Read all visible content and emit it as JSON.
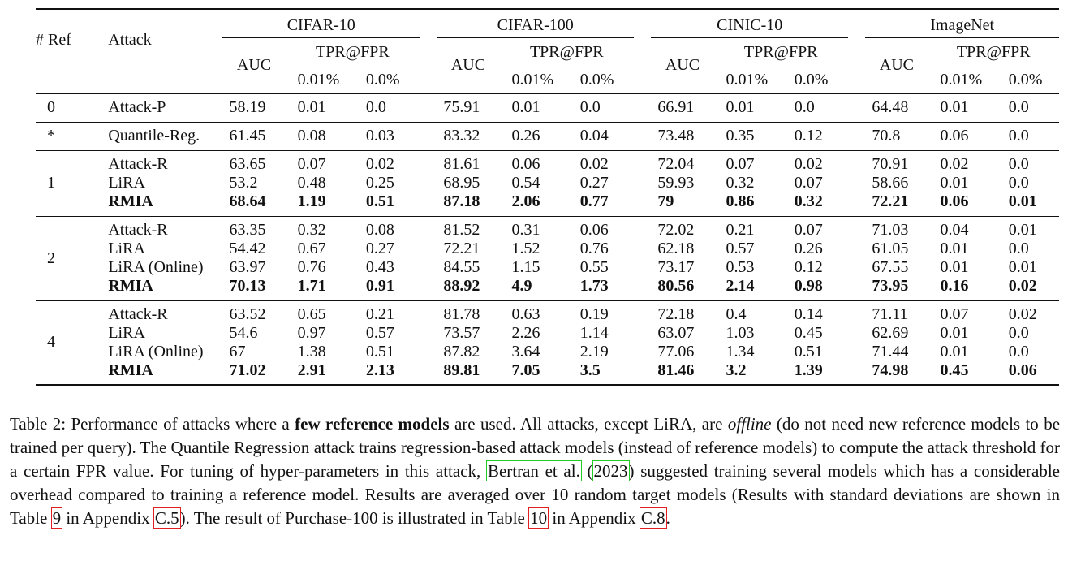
{
  "header": {
    "ref_label": "# Ref",
    "attack_label": "Attack",
    "datasets": [
      "CIFAR-10",
      "CIFAR-100",
      "CINIC-10",
      "ImageNet"
    ],
    "auc_label": "AUC",
    "tpr_label": "TPR@FPR",
    "fpr_values": [
      "0.01%",
      "0.0%"
    ]
  },
  "groups": [
    {
      "ref": "0",
      "rows": [
        {
          "attack": "Attack-P",
          "bold": false,
          "values": [
            "58.19",
            "0.01",
            "0.0",
            "75.91",
            "0.01",
            "0.0",
            "66.91",
            "0.01",
            "0.0",
            "64.48",
            "0.01",
            "0.0"
          ]
        }
      ]
    },
    {
      "ref": "*",
      "rows": [
        {
          "attack": "Quantile-Reg.",
          "bold": false,
          "values": [
            "61.45",
            "0.08",
            "0.03",
            "83.32",
            "0.26",
            "0.04",
            "73.48",
            "0.35",
            "0.12",
            "70.8",
            "0.06",
            "0.0"
          ]
        }
      ]
    },
    {
      "ref": "1",
      "rows": [
        {
          "attack": "Attack-R",
          "bold": false,
          "values": [
            "63.65",
            "0.07",
            "0.02",
            "81.61",
            "0.06",
            "0.02",
            "72.04",
            "0.07",
            "0.02",
            "70.91",
            "0.02",
            "0.0"
          ]
        },
        {
          "attack": "LiRA",
          "bold": false,
          "values": [
            "53.2",
            "0.48",
            "0.25",
            "68.95",
            "0.54",
            "0.27",
            "59.93",
            "0.32",
            "0.07",
            "58.66",
            "0.01",
            "0.0"
          ]
        },
        {
          "attack": "RMIA",
          "bold": true,
          "values": [
            "68.64",
            "1.19",
            "0.51",
            "87.18",
            "2.06",
            "0.77",
            "79",
            "0.86",
            "0.32",
            "72.21",
            "0.06",
            "0.01"
          ]
        }
      ]
    },
    {
      "ref": "2",
      "rows": [
        {
          "attack": "Attack-R",
          "bold": false,
          "values": [
            "63.35",
            "0.32",
            "0.08",
            "81.52",
            "0.31",
            "0.06",
            "72.02",
            "0.21",
            "0.07",
            "71.03",
            "0.04",
            "0.01"
          ]
        },
        {
          "attack": "LiRA",
          "bold": false,
          "values": [
            "54.42",
            "0.67",
            "0.27",
            "72.21",
            "1.52",
            "0.76",
            "62.18",
            "0.57",
            "0.26",
            "61.05",
            "0.01",
            "0.0"
          ]
        },
        {
          "attack": "LiRA (Online)",
          "bold": false,
          "values": [
            "63.97",
            "0.76",
            "0.43",
            "84.55",
            "1.15",
            "0.55",
            "73.17",
            "0.53",
            "0.12",
            "67.55",
            "0.01",
            "0.01"
          ]
        },
        {
          "attack": "RMIA",
          "bold": true,
          "values": [
            "70.13",
            "1.71",
            "0.91",
            "88.92",
            "4.9",
            "1.73",
            "80.56",
            "2.14",
            "0.98",
            "73.95",
            "0.16",
            "0.02"
          ]
        }
      ]
    },
    {
      "ref": "4",
      "rows": [
        {
          "attack": "Attack-R",
          "bold": false,
          "values": [
            "63.52",
            "0.65",
            "0.21",
            "81.78",
            "0.63",
            "0.19",
            "72.18",
            "0.4",
            "0.14",
            "71.11",
            "0.07",
            "0.02"
          ]
        },
        {
          "attack": "LiRA",
          "bold": false,
          "values": [
            "54.6",
            "0.97",
            "0.57",
            "73.57",
            "2.26",
            "1.14",
            "63.07",
            "1.03",
            "0.45",
            "62.69",
            "0.01",
            "0.0"
          ]
        },
        {
          "attack": "LiRA (Online)",
          "bold": false,
          "values": [
            "67",
            "1.38",
            "0.51",
            "87.82",
            "3.64",
            "2.19",
            "77.06",
            "1.34",
            "0.51",
            "71.44",
            "0.01",
            "0.0"
          ]
        },
        {
          "attack": "RMIA",
          "bold": true,
          "values": [
            "71.02",
            "2.91",
            "2.13",
            "89.81",
            "7.05",
            "3.5",
            "81.46",
            "3.2",
            "1.39",
            "74.98",
            "0.45",
            "0.06"
          ]
        }
      ]
    }
  ],
  "caption": {
    "s1": "Table 2: Performance of attacks where a ",
    "s1_bold": "few reference models",
    "s2": " are used.  All attacks, except LiRA, are ",
    "s2_italic": "offline",
    "s3": " (do not need new reference models to be trained per query). The Quantile Regression attack trains regression-based attack models (instead of reference models) to compute the attack threshold for a certain FPR value. For tuning of hyper-parameters in this attack, ",
    "cite_author": "Bertran et al.",
    "cite_open": " (",
    "cite_year": "2023",
    "cite_close": ")",
    "s4": " suggested training several models which has a considerable overhead compared to training a reference model.  Results are averaged over 10 random target models (Results with standard deviations are shown in Table ",
    "ref_table9": "9",
    "s5": " in Appendix ",
    "ref_c5": "C.5",
    "s6": "). The result of Purchase-100 is illustrated in Table ",
    "ref_table10": "10",
    "s7": " in Appendix ",
    "ref_c8": "C.8",
    "s8": "."
  }
}
